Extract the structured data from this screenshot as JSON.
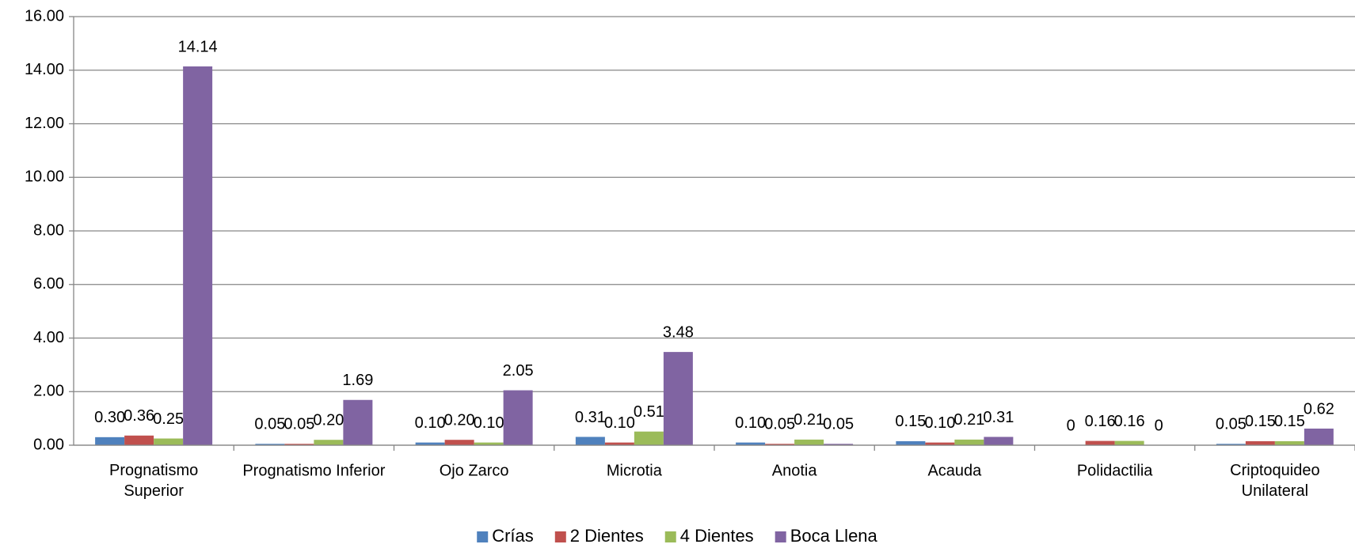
{
  "chart_data": {
    "type": "bar",
    "categories": [
      "Prognatismo\nSuperior",
      "Prognatismo Inferior",
      "Ojo Zarco",
      "Microtia",
      "Anotia",
      "Acauda",
      "Polidactilia",
      "Criptoquideo\nUnilateral"
    ],
    "series": [
      {
        "name": "Crías",
        "color": "#4f81bd",
        "values": [
          0.3,
          0.05,
          0.1,
          0.31,
          0.1,
          0.15,
          0,
          0.05
        ],
        "value_labels": [
          "0.30",
          "0.05",
          "0.10",
          "0.31",
          "0.10",
          "0.15",
          "0",
          "0.05"
        ]
      },
      {
        "name": "2 Dientes",
        "color": "#c0504d",
        "values": [
          0.36,
          0.05,
          0.2,
          0.1,
          0.05,
          0.1,
          0.16,
          0.15
        ],
        "value_labels": [
          "0.36",
          "0.05",
          "0.20",
          "0.10",
          "0.05",
          "0.10",
          "0.16",
          "0.15"
        ]
      },
      {
        "name": "4 Dientes",
        "color": "#9bbb59",
        "values": [
          0.25,
          0.2,
          0.1,
          0.51,
          0.21,
          0.21,
          0.16,
          0.15
        ],
        "value_labels": [
          "0.25",
          "0.20",
          "0.10",
          "0.51",
          "0.21",
          "0.21",
          "0.16",
          "0.15"
        ]
      },
      {
        "name": "Boca Llena",
        "color": "#8064a2",
        "values": [
          14.14,
          1.69,
          2.05,
          3.48,
          0.05,
          0.31,
          0,
          0.62
        ],
        "value_labels": [
          "14.14",
          "1.69",
          "2.05",
          "3.48",
          "0.05",
          "0.31",
          "0",
          "0.62"
        ]
      }
    ],
    "ylim": [
      0,
      16
    ],
    "yticks": [
      {
        "value": 0,
        "label": "0.00"
      },
      {
        "value": 2,
        "label": "2.00"
      },
      {
        "value": 4,
        "label": "4.00"
      },
      {
        "value": 6,
        "label": "6.00"
      },
      {
        "value": 8,
        "label": "8.00"
      },
      {
        "value": 10,
        "label": "10.00"
      },
      {
        "value": 12,
        "label": "12.00"
      },
      {
        "value": 14,
        "label": "14.00"
      },
      {
        "value": 16,
        "label": "16.00"
      }
    ],
    "grid": true,
    "legend": "bottom"
  }
}
